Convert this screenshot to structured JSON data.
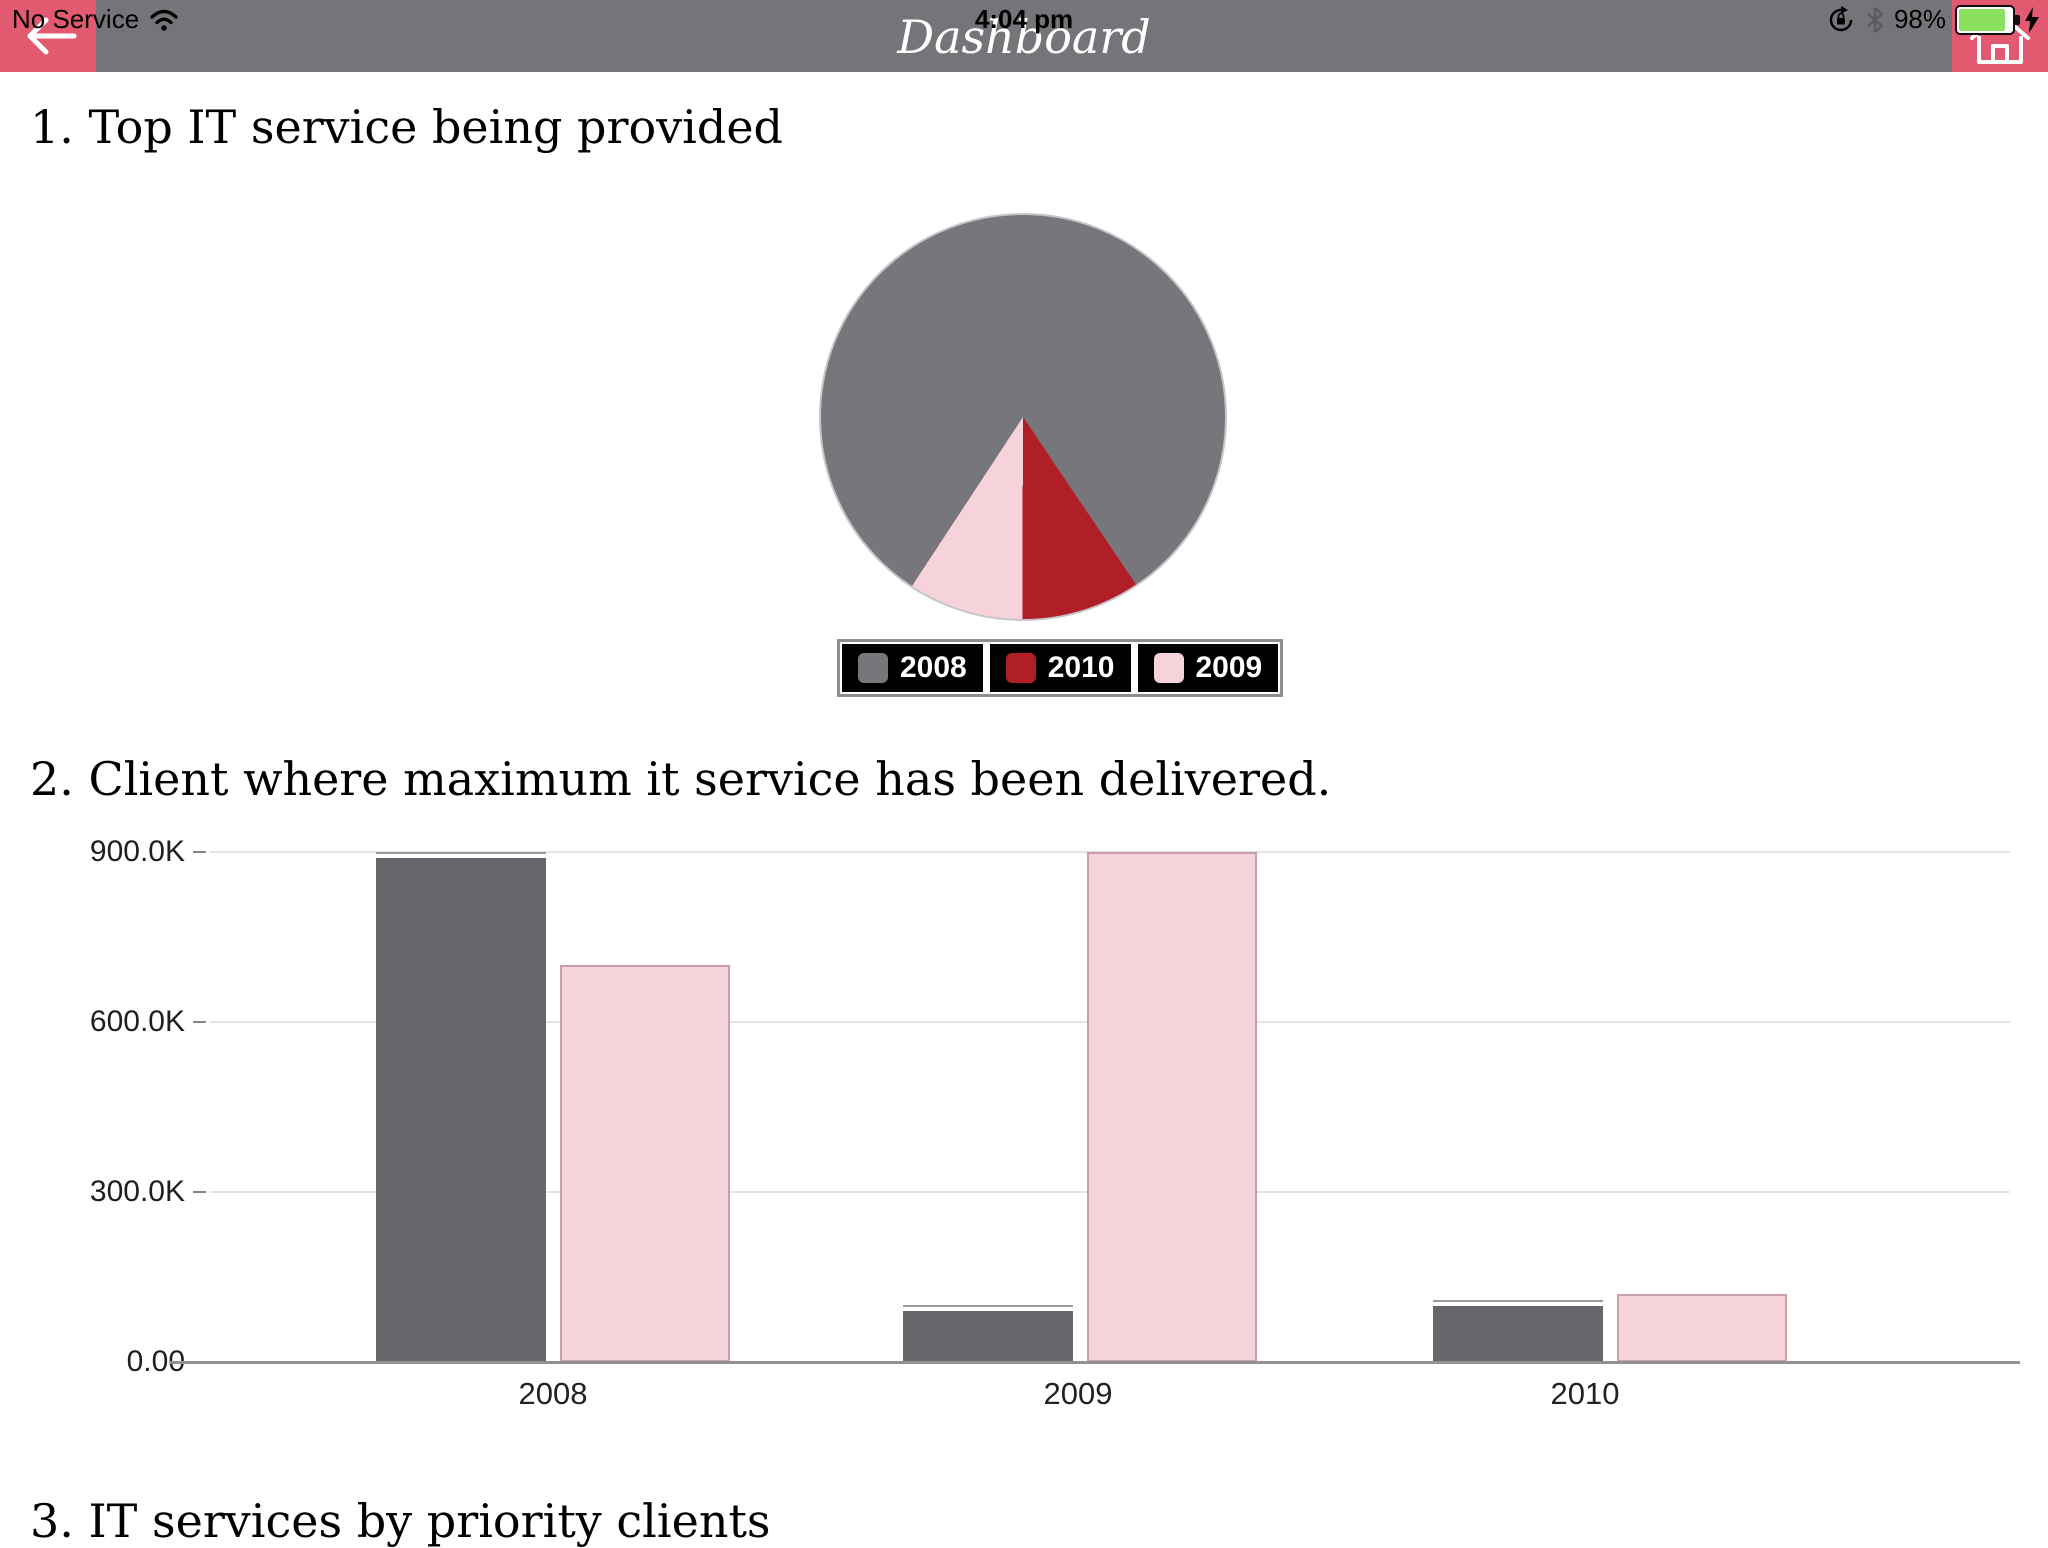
{
  "status_bar": {
    "carrier": "No Service",
    "time": "4:04 pm",
    "battery_percent": "98%",
    "icons": [
      "wifi",
      "rotation-lock",
      "bluetooth",
      "battery",
      "charging-bolt"
    ]
  },
  "nav_bar": {
    "title": "Dashboard",
    "left_button_icon": "back-arrow",
    "right_button_icon": "home",
    "accent_color": "#e15a70",
    "bar_color": "#757478"
  },
  "sections": [
    {
      "title": "1. Top IT service being provided"
    },
    {
      "title": "2. Client where maximum it service has been delivered."
    },
    {
      "title": "3. IT services by priority clients"
    }
  ],
  "chart_data": [
    {
      "type": "pie",
      "title": "Top IT service being provided",
      "legend_position": "bottom",
      "start_angle_deg": 146,
      "slices": [
        {
          "label": "2010",
          "color": "#b01f28",
          "percent": 9.5
        },
        {
          "label": "2009",
          "color": "#f6d3da",
          "percent": 9.2
        },
        {
          "label": "2008",
          "color": "#77767a",
          "percent": 81.3
        }
      ],
      "legend": [
        {
          "label": "2008",
          "color": "#77767a"
        },
        {
          "label": "2010",
          "color": "#b01f28"
        },
        {
          "label": "2009",
          "color": "#f6d3da"
        }
      ]
    },
    {
      "type": "bar",
      "title": "Client where maximum it service has been delivered.",
      "categories": [
        "2008",
        "2009",
        "2010"
      ],
      "series": [
        {
          "name": "gray",
          "color": "#67666b",
          "values": [
            900000,
            100000,
            110000
          ]
        },
        {
          "name": "pink",
          "color": "#f6d4db",
          "values": [
            700000,
            900000,
            120000
          ]
        }
      ],
      "yticks": [
        {
          "value": 900000,
          "label": "900.0K"
        },
        {
          "value": 600000,
          "label": "600.0K"
        },
        {
          "value": 300000,
          "label": "300.0K"
        },
        {
          "value": 0,
          "label": "0.00"
        }
      ],
      "ylim": [
        0,
        955000
      ],
      "grid": true,
      "legend_position": "none"
    }
  ]
}
